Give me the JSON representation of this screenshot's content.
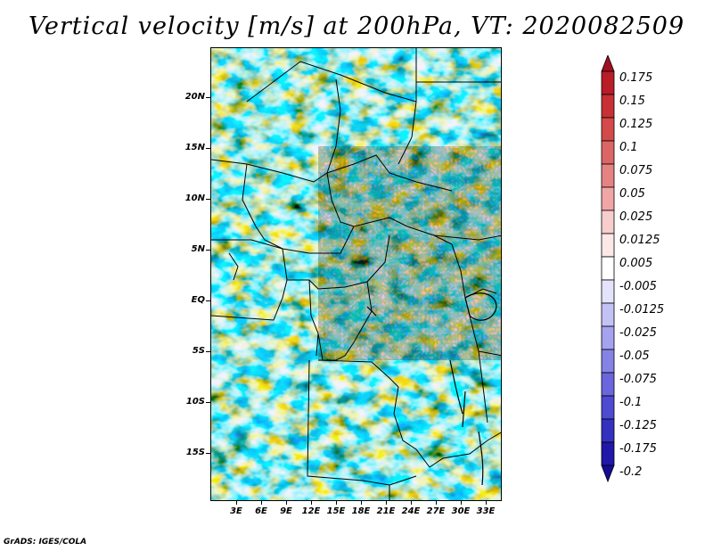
{
  "title": "Vertical velocity [m/s] at 200hPa, VT: 2020082509",
  "credit": "GrADS: IGES/COLA",
  "map": {
    "lat_labels": [
      "20N",
      "15N",
      "10N",
      "5N",
      "EQ",
      "5S",
      "10S",
      "15S"
    ],
    "lon_labels": [
      "3E",
      "6E",
      "9E",
      "12E",
      "15E",
      "18E",
      "21E",
      "24E",
      "27E",
      "30E",
      "33E"
    ]
  },
  "colorbar": {
    "labels": [
      "0.175",
      "0.15",
      "0.125",
      "0.1",
      "0.075",
      "0.05",
      "0.025",
      "0.0125",
      "0.005",
      "-0.005",
      "-0.0125",
      "-0.025",
      "-0.05",
      "-0.075",
      "-0.1",
      "-0.125",
      "-0.175",
      "-0.2"
    ],
    "colors": [
      "#a01020",
      "#b81d28",
      "#c83035",
      "#d44a4a",
      "#dc6666",
      "#e58383",
      "#f0a6a6",
      "#f8cdcd",
      "#fde8e8",
      "#ffffff",
      "#e4e3fb",
      "#c4c2f5",
      "#a5a2ee",
      "#8683e6",
      "#6a66dd",
      "#4e4ad2",
      "#3430c0",
      "#2018a8",
      "#140c96"
    ]
  }
}
